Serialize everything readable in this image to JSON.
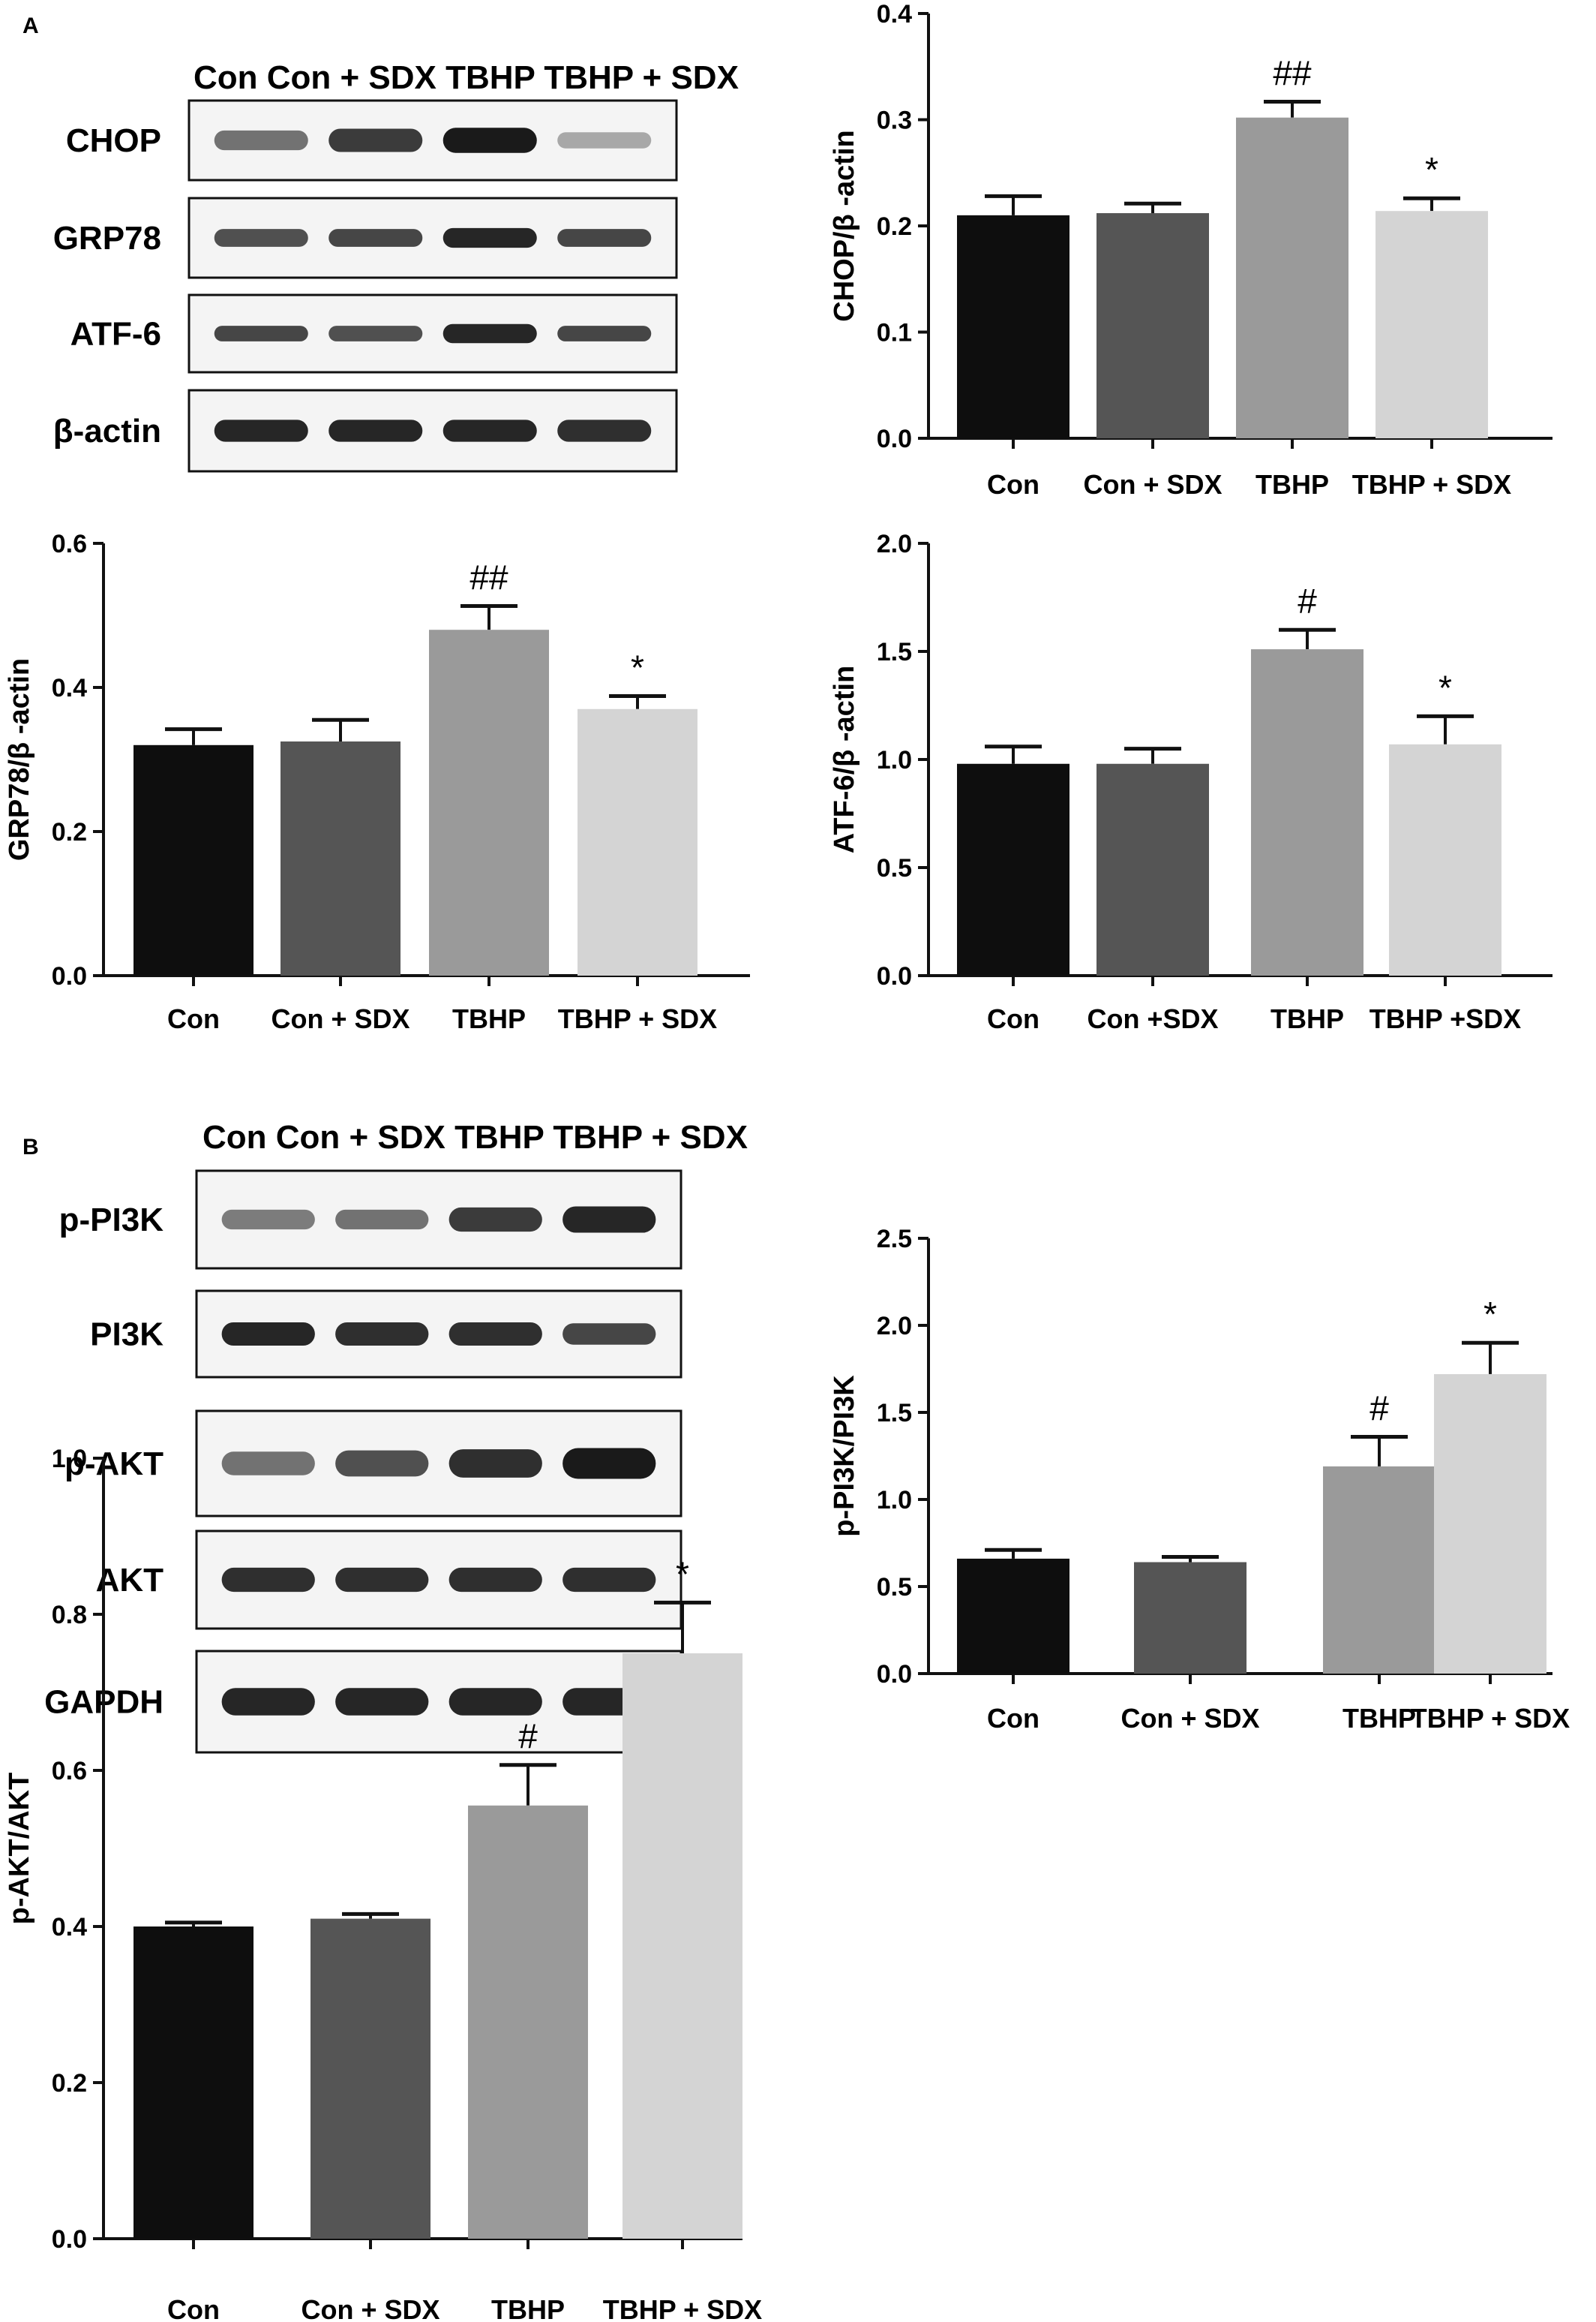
{
  "panels": [
    {
      "letter": "A"
    },
    {
      "letter": "B"
    }
  ],
  "blots": [
    {
      "header": "Con Con + SDX TBHP TBHP + SDX",
      "rows": [
        {
          "label": "CHOP",
          "intensity": [
            0.6,
            0.85,
            1.0,
            0.35
          ],
          "thickness": [
            0.55,
            0.65,
            0.7,
            0.45
          ]
        },
        {
          "label": "GRP78",
          "intensity": [
            0.75,
            0.8,
            0.95,
            0.8
          ],
          "thickness": [
            0.5,
            0.5,
            0.55,
            0.5
          ]
        },
        {
          "label": "ATF-6",
          "intensity": [
            0.8,
            0.75,
            0.95,
            0.8
          ],
          "thickness": [
            0.45,
            0.45,
            0.55,
            0.45
          ]
        },
        {
          "label": "β-actin",
          "intensity": [
            0.95,
            0.95,
            0.95,
            0.9
          ],
          "thickness": [
            0.6,
            0.6,
            0.6,
            0.6
          ]
        }
      ]
    },
    {
      "header": "Con Con + SDX TBHP TBHP + SDX",
      "rows": [
        {
          "label": "p-PI3K",
          "intensity": [
            0.55,
            0.6,
            0.85,
            0.95
          ],
          "thickness": [
            0.45,
            0.45,
            0.55,
            0.6
          ]
        },
        {
          "label": "PI3K",
          "intensity": [
            0.95,
            0.9,
            0.9,
            0.8
          ],
          "thickness": [
            0.6,
            0.6,
            0.6,
            0.55
          ]
        },
        {
          "label": "p-AKT",
          "intensity": [
            0.6,
            0.75,
            0.9,
            1.0
          ],
          "thickness": [
            0.5,
            0.55,
            0.6,
            0.65
          ]
        },
        {
          "label": "AKT",
          "intensity": [
            0.9,
            0.9,
            0.9,
            0.9
          ],
          "thickness": [
            0.55,
            0.55,
            0.55,
            0.55
          ]
        },
        {
          "label": "GAPDH",
          "intensity": [
            0.95,
            0.95,
            0.95,
            0.95
          ],
          "thickness": [
            0.6,
            0.6,
            0.6,
            0.6
          ]
        }
      ]
    }
  ],
  "colors": {
    "bars": [
      "#0e0e0e",
      "#555555",
      "#9a9a9a",
      "#d4d4d4"
    ],
    "axis": "#111111",
    "band": "#1a1a1a"
  },
  "chart_data": [
    {
      "type": "bar",
      "ylabel": "CHOP/β -actin",
      "categories": [
        "Con",
        "Con + SDX",
        "TBHP",
        "TBHP + SDX"
      ],
      "values": [
        0.21,
        0.212,
        0.302,
        0.214
      ],
      "errors": [
        0.018,
        0.009,
        0.015,
        0.012
      ],
      "annotations": [
        "",
        "",
        "##",
        "*"
      ],
      "ylim": [
        0,
        0.4
      ],
      "yticks": [
        "0.0",
        "0.1",
        "0.2",
        "0.3",
        "0.4"
      ]
    },
    {
      "type": "bar",
      "ylabel": "GRP78/β -actin",
      "categories": [
        "Con",
        "Con + SDX",
        "TBHP",
        "TBHP + SDX"
      ],
      "values": [
        0.32,
        0.325,
        0.48,
        0.37
      ],
      "errors": [
        0.022,
        0.03,
        0.033,
        0.018
      ],
      "annotations": [
        "",
        "",
        "##",
        "*"
      ],
      "ylim": [
        0,
        0.6
      ],
      "yticks": [
        "0.0",
        "0.2",
        "0.4",
        "0.6"
      ]
    },
    {
      "type": "bar",
      "ylabel": "ATF-6/β -actin",
      "categories": [
        "Con",
        "Con +SDX",
        "TBHP",
        "TBHP +SDX"
      ],
      "values": [
        0.98,
        0.98,
        1.51,
        1.07
      ],
      "errors": [
        0.08,
        0.07,
        0.09,
        0.13
      ],
      "annotations": [
        "",
        "",
        "#",
        "*"
      ],
      "ylim": [
        0,
        2.0
      ],
      "yticks": [
        "0.0",
        "0.5",
        "1.0",
        "1.5",
        "2.0"
      ]
    },
    {
      "type": "bar",
      "ylabel": "p-PI3K/PI3K",
      "categories": [
        "Con",
        "Con + SDX",
        "TBHP",
        "TBHP + SDX"
      ],
      "values": [
        0.66,
        0.64,
        1.19,
        1.72
      ],
      "errors": [
        0.05,
        0.03,
        0.17,
        0.18
      ],
      "annotations": [
        "",
        "",
        "#",
        "*"
      ],
      "ylim": [
        0,
        2.5
      ],
      "yticks": [
        "0.0",
        "0.5",
        "1.0",
        "1.5",
        "2.0",
        "2.5"
      ]
    },
    {
      "type": "bar",
      "ylabel": "p-AKT/AKT",
      "categories": [
        "Con",
        "Con + SDX",
        "TBHP",
        "TBHP + SDX"
      ],
      "values": [
        0.4,
        0.41,
        0.555,
        0.75
      ],
      "errors": [
        0.005,
        0.006,
        0.052,
        0.065
      ],
      "annotations": [
        "",
        "",
        "#",
        "*"
      ],
      "ylim": [
        0,
        1.0
      ],
      "yticks": [
        "0.0",
        "0.2",
        "0.4",
        "0.6",
        "0.8",
        "1.0"
      ]
    }
  ]
}
